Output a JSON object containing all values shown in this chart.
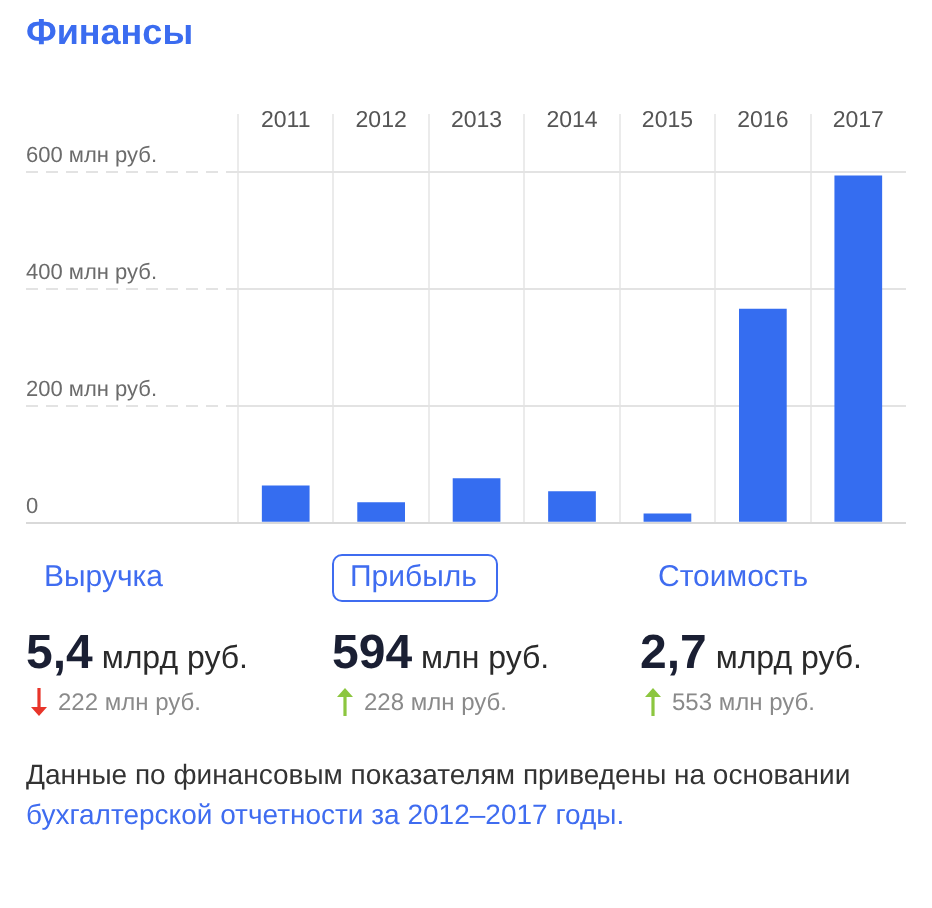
{
  "chart_data": {
    "type": "bar",
    "title": "Финансы",
    "categories": [
      "2011",
      "2012",
      "2013",
      "2014",
      "2015",
      "2016",
      "2017"
    ],
    "values": [
      64,
      35,
      76,
      54,
      16,
      366,
      594
    ],
    "color": "#356df0",
    "ylim": [
      0,
      600
    ],
    "yticks": [
      0,
      {
        "value": 200,
        "label": "200 млн руб."
      },
      {
        "value": 400,
        "label": "400 млн руб."
      },
      {
        "value": 600,
        "label": "600 млн руб."
      }
    ],
    "grid": true,
    "annotations": [
      "Выручка",
      "Прибыль",
      "Стоимость",
      "5,4 млрд руб.",
      "594 млн руб.",
      "2,7 млрд руб.",
      "222 млн руб.",
      "228 млн руб.",
      "553 млн руб.",
      "Данные по финансовым показателям приведены на основании",
      "бухгалтерской отчетности за 2012–2017 годы."
    ]
  }
}
